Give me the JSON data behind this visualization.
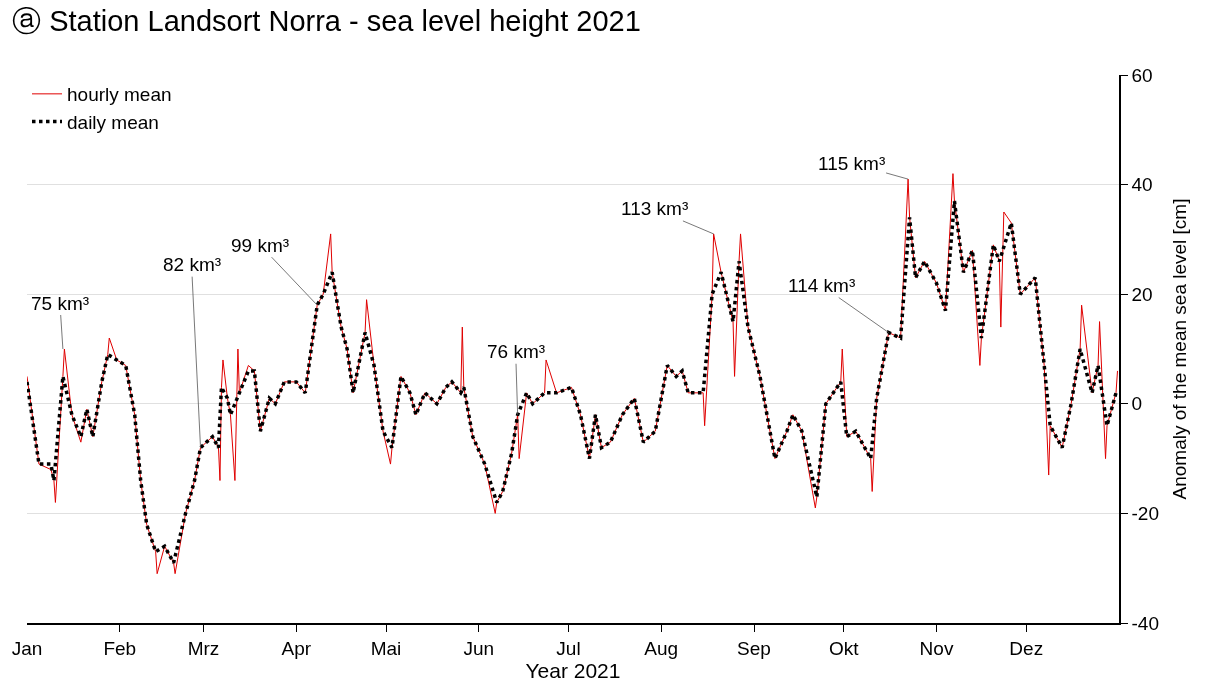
{
  "chart_data": {
    "type": "line",
    "title": "ⓐ Station Landsort Norra - sea level height 2021",
    "xlabel": "Year 2021",
    "ylabel": "Anomaly of the mean sea level [cm]",
    "xlim": [
      "2021-01-01",
      "2022-01-01"
    ],
    "xticks": [
      {
        "value": "2021-01-01",
        "label": "Jan"
      },
      {
        "value": "2021-02-01",
        "label": "Feb"
      },
      {
        "value": "2021-03-01",
        "label": "Mrz"
      },
      {
        "value": "2021-04-01",
        "label": "Apr"
      },
      {
        "value": "2021-05-01",
        "label": "Mai"
      },
      {
        "value": "2021-06-01",
        "label": "Jun"
      },
      {
        "value": "2021-07-01",
        "label": "Jul"
      },
      {
        "value": "2021-08-01",
        "label": "Aug"
      },
      {
        "value": "2021-09-01",
        "label": "Sep"
      },
      {
        "value": "2021-10-01",
        "label": "Okt"
      },
      {
        "value": "2021-11-01",
        "label": "Nov"
      },
      {
        "value": "2021-12-01",
        "label": "Dez"
      }
    ],
    "ylim": [
      -40,
      60
    ],
    "yticks": [
      -40,
      -20,
      0,
      20,
      40,
      60
    ],
    "grid": "y",
    "legend": "top left",
    "marker": "none",
    "series": [
      {
        "name": "hourly mean",
        "color": "#e00000",
        "line_style": "solid",
        "x": [
          "2021-01-01",
          "2021-01-05",
          "2021-01-09",
          "2021-01-10",
          "2021-01-10T12:00",
          "2021-01-13",
          "2021-01-13T12:00",
          "2021-01-16",
          "2021-01-19",
          "2021-01-21",
          "2021-01-23",
          "2021-01-26",
          "2021-01-28",
          "2021-01-28T12:00",
          "2021-01-31",
          "2021-02-03",
          "2021-02-06",
          "2021-02-08",
          "2021-02-10",
          "2021-02-13",
          "2021-02-13T12:00",
          "2021-02-16",
          "2021-02-19",
          "2021-02-19T12:00",
          "2021-02-23",
          "2021-02-26",
          "2021-02-28",
          "2021-03-04",
          "2021-03-06",
          "2021-03-06T12:00",
          "2021-03-07",
          "2021-03-07T12:00",
          "2021-03-09",
          "2021-03-10",
          "2021-03-11T12:00",
          "2021-03-12T12:00",
          "2021-03-13",
          "2021-03-16",
          "2021-03-18",
          "2021-03-20",
          "2021-03-23",
          "2021-03-25",
          "2021-03-28",
          "2021-04-01",
          "2021-04-04",
          "2021-04-08",
          "2021-04-10",
          "2021-04-12T12:00",
          "2021-04-13",
          "2021-04-16",
          "2021-04-18",
          "2021-04-20",
          "2021-04-24",
          "2021-04-24T12:00",
          "2021-04-27",
          "2021-04-30",
          "2021-05-02T12:00",
          "2021-05-03",
          "2021-05-06",
          "2021-05-09",
          "2021-05-11",
          "2021-05-14",
          "2021-05-18",
          "2021-05-21",
          "2021-05-23",
          "2021-05-26",
          "2021-05-26T12:00",
          "2021-05-27",
          "2021-05-30",
          "2021-06-03",
          "2021-06-06T12:00",
          "2021-06-07",
          "2021-06-09",
          "2021-06-12",
          "2021-06-14",
          "2021-06-14T12:00",
          "2021-06-17",
          "2021-06-19",
          "2021-06-23",
          "2021-06-23T12:00",
          "2021-06-27",
          "2021-07-02",
          "2021-07-05",
          "2021-07-08",
          "2021-07-10",
          "2021-07-12",
          "2021-07-15",
          "2021-07-19",
          "2021-07-23",
          "2021-07-26",
          "2021-07-30",
          "2021-08-03",
          "2021-08-06",
          "2021-08-08",
          "2021-08-10",
          "2021-08-15",
          "2021-08-15T12:00",
          "2021-08-18",
          "2021-08-18T12:00",
          "2021-08-21",
          "2021-08-25",
          "2021-08-25T12:00",
          "2021-08-27",
          "2021-08-27T12:00",
          "2021-08-30",
          "2021-09-03",
          "2021-09-08",
          "2021-09-12",
          "2021-09-14",
          "2021-09-17",
          "2021-09-21T12:00",
          "2021-09-22",
          "2021-09-25",
          "2021-09-30",
          "2021-09-30T12:00",
          "2021-10-02",
          "2021-10-05",
          "2021-10-10",
          "2021-10-10T12:00",
          "2021-10-12",
          "2021-10-16",
          "2021-10-20",
          "2021-10-22T12:00",
          "2021-10-23",
          "2021-10-25",
          "2021-10-28",
          "2021-11-01",
          "2021-11-04",
          "2021-11-06T12:00",
          "2021-11-07",
          "2021-11-10",
          "2021-11-13",
          "2021-11-15T12:00",
          "2021-11-16",
          "2021-11-20",
          "2021-11-22",
          "2021-11-22T12:00",
          "2021-11-23T12:00",
          "2021-11-26",
          "2021-11-29",
          "2021-12-04",
          "2021-12-07",
          "2021-12-08T12:00",
          "2021-12-09",
          "2021-12-13",
          "2021-12-16",
          "2021-12-19",
          "2021-12-19T12:00",
          "2021-12-23",
          "2021-12-25",
          "2021-12-25T12:00",
          "2021-12-27T12:00",
          "2021-12-28",
          "2021-12-31",
          "2021-12-31T12:00"
        ],
        "values": [
          5,
          -11,
          -12,
          -14,
          -18,
          5,
          10,
          -2,
          -7,
          -1,
          -6,
          4,
          9,
          12,
          8,
          7,
          -2,
          -14,
          -22,
          -27,
          -31,
          -26,
          -29,
          -31,
          -20,
          -14,
          -8,
          -6,
          -8,
          -14,
          3,
          8,
          1,
          -2,
          -14,
          10,
          2,
          7,
          6,
          -5,
          1,
          0,
          4,
          4,
          2,
          18,
          20,
          31,
          24,
          14,
          10,
          2,
          13,
          19,
          7,
          -5,
          -11,
          -8,
          5,
          2,
          -2,
          2,
          0,
          3,
          4,
          2,
          14,
          3,
          -6,
          -11,
          -20,
          -18,
          -16,
          -9,
          -2,
          -10,
          2,
          0,
          2,
          8,
          2,
          3,
          -2,
          -10,
          -2,
          -8,
          -7,
          -2,
          1,
          -7,
          -5,
          7,
          5,
          6,
          2,
          2,
          -4,
          20,
          31,
          24,
          15,
          5,
          26,
          31,
          14,
          5,
          -10,
          -5,
          -2,
          -5,
          -19,
          -17,
          0,
          4,
          10,
          -6,
          -5,
          -10,
          -16,
          1,
          13,
          12,
          41,
          34,
          23,
          26,
          22,
          17,
          42,
          37,
          24,
          28,
          7,
          12,
          29,
          26,
          14,
          35,
          33,
          20,
          23,
          7,
          -13,
          -4,
          -8,
          0,
          10,
          18,
          2,
          7,
          15,
          -10,
          -4,
          2,
          6
        ]
      },
      {
        "name": "daily mean",
        "color": "#000000",
        "line_style": "dotted",
        "x": [
          "2021-01-01",
          "2021-01-05",
          "2021-01-09",
          "2021-01-10",
          "2021-01-13",
          "2021-01-16",
          "2021-01-19",
          "2021-01-21",
          "2021-01-23",
          "2021-01-26",
          "2021-01-28",
          "2021-01-31",
          "2021-02-03",
          "2021-02-06",
          "2021-02-08",
          "2021-02-10",
          "2021-02-13",
          "2021-02-16",
          "2021-02-19",
          "2021-02-23",
          "2021-02-26",
          "2021-02-28",
          "2021-03-04",
          "2021-03-06",
          "2021-03-07",
          "2021-03-09",
          "2021-03-10",
          "2021-03-13",
          "2021-03-16",
          "2021-03-18",
          "2021-03-20",
          "2021-03-23",
          "2021-03-25",
          "2021-03-28",
          "2021-04-01",
          "2021-04-04",
          "2021-04-08",
          "2021-04-10",
          "2021-04-13",
          "2021-04-16",
          "2021-04-18",
          "2021-04-20",
          "2021-04-24",
          "2021-04-27",
          "2021-04-30",
          "2021-05-03",
          "2021-05-06",
          "2021-05-09",
          "2021-05-11",
          "2021-05-14",
          "2021-05-18",
          "2021-05-21",
          "2021-05-23",
          "2021-05-26",
          "2021-05-27",
          "2021-05-30",
          "2021-06-03",
          "2021-06-07",
          "2021-06-09",
          "2021-06-12",
          "2021-06-14",
          "2021-06-17",
          "2021-06-19",
          "2021-06-23",
          "2021-06-27",
          "2021-07-02",
          "2021-07-05",
          "2021-07-08",
          "2021-07-10",
          "2021-07-12",
          "2021-07-15",
          "2021-07-19",
          "2021-07-23",
          "2021-07-26",
          "2021-07-30",
          "2021-08-03",
          "2021-08-06",
          "2021-08-08",
          "2021-08-10",
          "2021-08-15",
          "2021-08-18",
          "2021-08-21",
          "2021-08-25",
          "2021-08-27",
          "2021-08-30",
          "2021-09-03",
          "2021-09-08",
          "2021-09-12",
          "2021-09-14",
          "2021-09-17",
          "2021-09-22",
          "2021-09-25",
          "2021-09-30",
          "2021-10-02",
          "2021-10-05",
          "2021-10-10",
          "2021-10-12",
          "2021-10-16",
          "2021-10-20",
          "2021-10-23",
          "2021-10-25",
          "2021-10-28",
          "2021-11-01",
          "2021-11-04",
          "2021-11-07",
          "2021-11-10",
          "2021-11-13",
          "2021-11-16",
          "2021-11-20",
          "2021-11-22",
          "2021-11-26",
          "2021-11-29",
          "2021-12-04",
          "2021-12-07",
          "2021-12-09",
          "2021-12-13",
          "2021-12-16",
          "2021-12-19",
          "2021-12-23",
          "2021-12-25",
          "2021-12-28",
          "2021-12-31"
        ],
        "values": [
          4,
          -11,
          -11,
          -14,
          5,
          -2,
          -6,
          -1,
          -6,
          4,
          9,
          8,
          7,
          -2,
          -14,
          -22,
          -27,
          -26,
          -29,
          -20,
          -14,
          -8,
          -6,
          -8,
          3,
          1,
          -2,
          2,
          6,
          6,
          -5,
          1,
          0,
          4,
          4,
          2,
          18,
          20,
          24,
          14,
          10,
          2,
          13,
          7,
          -5,
          -8,
          5,
          2,
          -2,
          2,
          0,
          3,
          4,
          2,
          3,
          -6,
          -11,
          -18,
          -16,
          -9,
          -2,
          2,
          0,
          2,
          2,
          3,
          -2,
          -10,
          -2,
          -8,
          -7,
          -2,
          1,
          -7,
          -5,
          7,
          5,
          6,
          2,
          2,
          20,
          24,
          15,
          26,
          14,
          5,
          -10,
          -5,
          -2,
          -5,
          -17,
          0,
          4,
          -6,
          -5,
          -10,
          1,
          13,
          12,
          34,
          23,
          26,
          22,
          17,
          37,
          24,
          28,
          12,
          29,
          26,
          33,
          20,
          23,
          7,
          -4,
          -8,
          0,
          10,
          2,
          7,
          -4,
          2
        ]
      }
    ],
    "annotations": [
      {
        "text": "75 km³",
        "x": "2021-01-13",
        "y": 10
      },
      {
        "text": "82 km³",
        "x": "2021-02-28",
        "y": -8
      },
      {
        "text": "99 km³",
        "x": "2021-04-08",
        "y": 18
      },
      {
        "text": "76 km³",
        "x": "2021-06-14",
        "y": -2
      },
      {
        "text": "113 km³",
        "x": "2021-08-18T12:00",
        "y": 31
      },
      {
        "text": "114 km³",
        "x": "2021-10-16",
        "y": 13
      },
      {
        "text": "115 km³",
        "x": "2021-10-22T12:00",
        "y": 41
      }
    ]
  }
}
